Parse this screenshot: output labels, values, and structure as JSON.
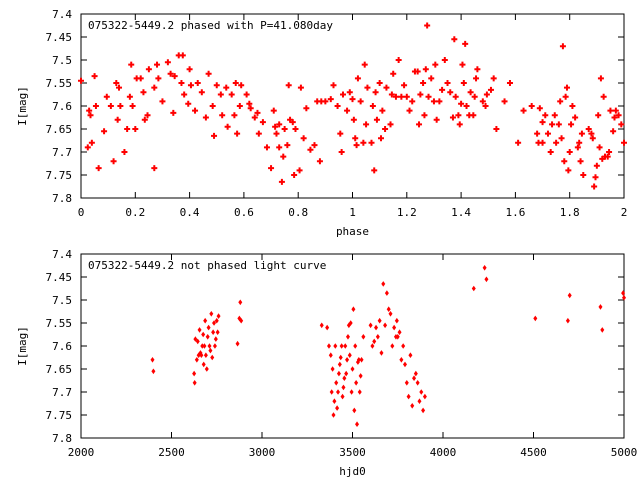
{
  "chart_data": [
    {
      "type": "scatter",
      "title": "075322-5449.2 phased with P=41.080day",
      "xlabel": "phase",
      "ylabel": "I[mag]",
      "xlim": [
        0,
        2
      ],
      "ylim": [
        7.8,
        7.4
      ],
      "y_inverted": true,
      "grid": false,
      "xticks": [
        0,
        0.2,
        0.4,
        0.6,
        0.8,
        1,
        1.2,
        1.4,
        1.6,
        1.8,
        2
      ],
      "xtick_labels": [
        "0",
        "0.2",
        "0.4",
        "0.6",
        "0.8",
        "1",
        "1.2",
        "1.4",
        "1.6",
        "1.8",
        "2"
      ],
      "yticks": [
        7.4,
        7.45,
        7.5,
        7.55,
        7.6,
        7.65,
        7.7,
        7.75,
        7.8
      ],
      "ytick_labels": [
        "7.4",
        "7.45",
        "7.5",
        "7.55",
        "7.6",
        "7.65",
        "7.7",
        "7.75",
        "7.8"
      ],
      "marker_color": "#ff0000",
      "points": [
        [
          0.0,
          7.545
        ],
        [
          0.025,
          7.69
        ],
        [
          0.03,
          7.61
        ],
        [
          0.035,
          7.62
        ],
        [
          0.04,
          7.68
        ],
        [
          0.05,
          7.535
        ],
        [
          0.055,
          7.6
        ],
        [
          0.065,
          7.735
        ],
        [
          0.085,
          7.655
        ],
        [
          0.095,
          7.58
        ],
        [
          0.11,
          7.6
        ],
        [
          0.12,
          7.72
        ],
        [
          0.13,
          7.55
        ],
        [
          0.135,
          7.63
        ],
        [
          0.14,
          7.56
        ],
        [
          0.145,
          7.6
        ],
        [
          0.16,
          7.7
        ],
        [
          0.17,
          7.65
        ],
        [
          0.18,
          7.58
        ],
        [
          0.185,
          7.51
        ],
        [
          0.19,
          7.6
        ],
        [
          0.2,
          7.65
        ],
        [
          0.205,
          7.54
        ],
        [
          0.22,
          7.54
        ],
        [
          0.23,
          7.57
        ],
        [
          0.235,
          7.63
        ],
        [
          0.245,
          7.62
        ],
        [
          0.25,
          7.52
        ],
        [
          0.27,
          7.56
        ],
        [
          0.27,
          7.735
        ],
        [
          0.28,
          7.51
        ],
        [
          0.285,
          7.54
        ],
        [
          0.3,
          7.59
        ],
        [
          0.32,
          7.505
        ],
        [
          0.33,
          7.53
        ],
        [
          0.34,
          7.615
        ],
        [
          0.345,
          7.535
        ],
        [
          0.36,
          7.49
        ],
        [
          0.37,
          7.55
        ],
        [
          0.375,
          7.49
        ],
        [
          0.38,
          7.575
        ],
        [
          0.395,
          7.595
        ],
        [
          0.4,
          7.52
        ],
        [
          0.405,
          7.555
        ],
        [
          0.42,
          7.61
        ],
        [
          0.43,
          7.55
        ],
        [
          0.445,
          7.57
        ],
        [
          0.46,
          7.625
        ],
        [
          0.47,
          7.53
        ],
        [
          0.485,
          7.6
        ],
        [
          0.49,
          7.665
        ],
        [
          0.5,
          7.555
        ],
        [
          0.515,
          7.575
        ],
        [
          0.52,
          7.62
        ],
        [
          0.535,
          7.56
        ],
        [
          0.54,
          7.645
        ],
        [
          0.555,
          7.575
        ],
        [
          0.565,
          7.62
        ],
        [
          0.57,
          7.55
        ],
        [
          0.575,
          7.66
        ],
        [
          0.585,
          7.6
        ],
        [
          0.59,
          7.555
        ],
        [
          0.61,
          7.575
        ],
        [
          0.62,
          7.595
        ],
        [
          0.625,
          7.605
        ],
        [
          0.64,
          7.625
        ],
        [
          0.65,
          7.615
        ],
        [
          0.655,
          7.66
        ],
        [
          0.67,
          7.635
        ],
        [
          0.685,
          7.69
        ],
        [
          0.7,
          7.735
        ],
        [
          0.71,
          7.61
        ],
        [
          0.715,
          7.645
        ],
        [
          0.72,
          7.66
        ],
        [
          0.73,
          7.64
        ],
        [
          0.73,
          7.69
        ],
        [
          0.74,
          7.765
        ],
        [
          0.745,
          7.71
        ],
        [
          0.75,
          7.65
        ],
        [
          0.76,
          7.685
        ],
        [
          0.765,
          7.555
        ],
        [
          0.77,
          7.63
        ],
        [
          0.78,
          7.635
        ],
        [
          0.785,
          7.75
        ],
        [
          0.79,
          7.65
        ],
        [
          0.805,
          7.74
        ],
        [
          0.81,
          7.56
        ],
        [
          0.82,
          7.67
        ],
        [
          0.83,
          7.605
        ],
        [
          0.845,
          7.695
        ],
        [
          0.86,
          7.685
        ],
        [
          0.87,
          7.59
        ],
        [
          0.88,
          7.72
        ],
        [
          0.885,
          7.59
        ],
        [
          0.9,
          7.59
        ],
        [
          0.92,
          7.585
        ],
        [
          0.93,
          7.555
        ],
        [
          0.945,
          7.6
        ],
        [
          0.955,
          7.66
        ],
        [
          0.96,
          7.7
        ],
        [
          0.965,
          7.575
        ],
        [
          0.98,
          7.61
        ],
        [
          0.99,
          7.57
        ],
        [
          1.0,
          7.585
        ],
        [
          1.005,
          7.63
        ],
        [
          1.01,
          7.67
        ],
        [
          1.015,
          7.685
        ],
        [
          1.02,
          7.54
        ],
        [
          1.03,
          7.59
        ],
        [
          1.04,
          7.68
        ],
        [
          1.045,
          7.51
        ],
        [
          1.05,
          7.64
        ],
        [
          1.055,
          7.56
        ],
        [
          1.07,
          7.68
        ],
        [
          1.075,
          7.6
        ],
        [
          1.08,
          7.74
        ],
        [
          1.085,
          7.57
        ],
        [
          1.09,
          7.63
        ],
        [
          1.1,
          7.55
        ],
        [
          1.105,
          7.67
        ],
        [
          1.11,
          7.61
        ],
        [
          1.12,
          7.65
        ],
        [
          1.125,
          7.56
        ],
        [
          1.14,
          7.64
        ],
        [
          1.145,
          7.575
        ],
        [
          1.15,
          7.53
        ],
        [
          1.16,
          7.58
        ],
        [
          1.17,
          7.5
        ],
        [
          1.18,
          7.58
        ],
        [
          1.19,
          7.555
        ],
        [
          1.2,
          7.58
        ],
        [
          1.21,
          7.61
        ],
        [
          1.22,
          7.59
        ],
        [
          1.23,
          7.525
        ],
        [
          1.24,
          7.525
        ],
        [
          1.245,
          7.64
        ],
        [
          1.25,
          7.575
        ],
        [
          1.26,
          7.55
        ],
        [
          1.265,
          7.62
        ],
        [
          1.27,
          7.52
        ],
        [
          1.275,
          7.425
        ],
        [
          1.28,
          7.58
        ],
        [
          1.29,
          7.54
        ],
        [
          1.3,
          7.59
        ],
        [
          1.305,
          7.51
        ],
        [
          1.31,
          7.63
        ],
        [
          1.32,
          7.59
        ],
        [
          1.33,
          7.565
        ],
        [
          1.34,
          7.5
        ],
        [
          1.35,
          7.55
        ],
        [
          1.36,
          7.57
        ],
        [
          1.37,
          7.625
        ],
        [
          1.375,
          7.455
        ],
        [
          1.38,
          7.58
        ],
        [
          1.39,
          7.62
        ],
        [
          1.395,
          7.64
        ],
        [
          1.4,
          7.595
        ],
        [
          1.405,
          7.51
        ],
        [
          1.41,
          7.55
        ],
        [
          1.415,
          7.465
        ],
        [
          1.42,
          7.6
        ],
        [
          1.43,
          7.62
        ],
        [
          1.435,
          7.57
        ],
        [
          1.445,
          7.62
        ],
        [
          1.45,
          7.58
        ],
        [
          1.455,
          7.54
        ],
        [
          1.46,
          7.52
        ],
        [
          1.48,
          7.59
        ],
        [
          1.49,
          7.6
        ],
        [
          1.495,
          7.575
        ],
        [
          1.51,
          7.565
        ],
        [
          1.52,
          7.54
        ],
        [
          1.53,
          7.65
        ],
        [
          1.56,
          7.59
        ],
        [
          1.58,
          7.55
        ],
        [
          1.61,
          7.68
        ],
        [
          1.63,
          7.61
        ],
        [
          1.66,
          7.6
        ],
        [
          1.68,
          7.66
        ],
        [
          1.685,
          7.68
        ],
        [
          1.69,
          7.605
        ],
        [
          1.7,
          7.635
        ],
        [
          1.7,
          7.68
        ],
        [
          1.71,
          7.62
        ],
        [
          1.72,
          7.66
        ],
        [
          1.73,
          7.7
        ],
        [
          1.735,
          7.64
        ],
        [
          1.745,
          7.62
        ],
        [
          1.75,
          7.68
        ],
        [
          1.76,
          7.64
        ],
        [
          1.765,
          7.59
        ],
        [
          1.77,
          7.67
        ],
        [
          1.775,
          7.47
        ],
        [
          1.78,
          7.72
        ],
        [
          1.785,
          7.58
        ],
        [
          1.79,
          7.56
        ],
        [
          1.795,
          7.74
        ],
        [
          1.8,
          7.7
        ],
        [
          1.805,
          7.64
        ],
        [
          1.81,
          7.6
        ],
        [
          1.82,
          7.625
        ],
        [
          1.83,
          7.69
        ],
        [
          1.835,
          7.68
        ],
        [
          1.84,
          7.72
        ],
        [
          1.845,
          7.66
        ],
        [
          1.85,
          7.75
        ],
        [
          1.87,
          7.65
        ],
        [
          1.88,
          7.66
        ],
        [
          1.885,
          7.67
        ],
        [
          1.89,
          7.775
        ],
        [
          1.895,
          7.755
        ],
        [
          1.9,
          7.73
        ],
        [
          1.905,
          7.62
        ],
        [
          1.91,
          7.69
        ],
        [
          1.915,
          7.54
        ],
        [
          1.92,
          7.715
        ],
        [
          1.925,
          7.58
        ],
        [
          1.93,
          7.71
        ],
        [
          1.94,
          7.71
        ],
        [
          1.945,
          7.7
        ],
        [
          1.95,
          7.61
        ],
        [
          1.96,
          7.655
        ],
        [
          1.965,
          7.625
        ],
        [
          1.97,
          7.61
        ],
        [
          1.98,
          7.62
        ],
        [
          1.99,
          7.64
        ],
        [
          2.0,
          7.68
        ]
      ]
    },
    {
      "type": "scatter",
      "title": "075322-5449.2 not phased light curve",
      "xlabel": "hjd0",
      "ylabel": "I[mag]",
      "xlim": [
        2000,
        5000
      ],
      "ylim": [
        7.8,
        7.4
      ],
      "y_inverted": true,
      "grid": false,
      "xticks": [
        2000,
        2500,
        3000,
        3500,
        4000,
        4500,
        5000
      ],
      "xtick_labels": [
        "2000",
        "2500",
        "3000",
        "3500",
        "4000",
        "4500",
        "5000"
      ],
      "yticks": [
        7.4,
        7.45,
        7.5,
        7.55,
        7.6,
        7.65,
        7.7,
        7.75,
        7.8
      ],
      "ytick_labels": [
        "7.4",
        "7.45",
        "7.5",
        "7.55",
        "7.6",
        "7.65",
        "7.7",
        "7.75",
        "7.8"
      ],
      "marker_color": "#ff0000",
      "points": [
        [
          2395,
          7.63
        ],
        [
          2400,
          7.655
        ],
        [
          2625,
          7.66
        ],
        [
          2628,
          7.68
        ],
        [
          2632,
          7.585
        ],
        [
          2640,
          7.63
        ],
        [
          2645,
          7.59
        ],
        [
          2650,
          7.62
        ],
        [
          2655,
          7.565
        ],
        [
          2660,
          7.615
        ],
        [
          2665,
          7.62
        ],
        [
          2670,
          7.6
        ],
        [
          2675,
          7.575
        ],
        [
          2678,
          7.64
        ],
        [
          2682,
          7.6
        ],
        [
          2686,
          7.545
        ],
        [
          2690,
          7.62
        ],
        [
          2695,
          7.65
        ],
        [
          2700,
          7.58
        ],
        [
          2705,
          7.56
        ],
        [
          2710,
          7.6
        ],
        [
          2715,
          7.61
        ],
        [
          2720,
          7.53
        ],
        [
          2725,
          7.625
        ],
        [
          2730,
          7.57
        ],
        [
          2735,
          7.55
        ],
        [
          2740,
          7.6
        ],
        [
          2745,
          7.585
        ],
        [
          2750,
          7.545
        ],
        [
          2755,
          7.57
        ],
        [
          2760,
          7.535
        ],
        [
          2865,
          7.595
        ],
        [
          2875,
          7.54
        ],
        [
          2880,
          7.505
        ],
        [
          2885,
          7.545
        ],
        [
          3330,
          7.555
        ],
        [
          3360,
          7.56
        ],
        [
          3370,
          7.6
        ],
        [
          3380,
          7.62
        ],
        [
          3385,
          7.7
        ],
        [
          3390,
          7.65
        ],
        [
          3395,
          7.75
        ],
        [
          3400,
          7.72
        ],
        [
          3405,
          7.6
        ],
        [
          3410,
          7.68
        ],
        [
          3415,
          7.735
        ],
        [
          3420,
          7.7
        ],
        [
          3425,
          7.66
        ],
        [
          3430,
          7.64
        ],
        [
          3435,
          7.625
        ],
        [
          3440,
          7.6
        ],
        [
          3445,
          7.71
        ],
        [
          3450,
          7.69
        ],
        [
          3455,
          7.67
        ],
        [
          3460,
          7.6
        ],
        [
          3465,
          7.66
        ],
        [
          3470,
          7.63
        ],
        [
          3475,
          7.58
        ],
        [
          3480,
          7.555
        ],
        [
          3485,
          7.62
        ],
        [
          3490,
          7.55
        ],
        [
          3495,
          7.7
        ],
        [
          3500,
          7.65
        ],
        [
          3505,
          7.52
        ],
        [
          3510,
          7.74
        ],
        [
          3515,
          7.6
        ],
        [
          3520,
          7.68
        ],
        [
          3525,
          7.77
        ],
        [
          3530,
          7.635
        ],
        [
          3535,
          7.63
        ],
        [
          3540,
          7.7
        ],
        [
          3545,
          7.665
        ],
        [
          3550,
          7.63
        ],
        [
          3560,
          7.58
        ],
        [
          3600,
          7.555
        ],
        [
          3610,
          7.6
        ],
        [
          3620,
          7.59
        ],
        [
          3630,
          7.56
        ],
        [
          3640,
          7.58
        ],
        [
          3650,
          7.545
        ],
        [
          3660,
          7.615
        ],
        [
          3670,
          7.465
        ],
        [
          3680,
          7.555
        ],
        [
          3690,
          7.485
        ],
        [
          3700,
          7.52
        ],
        [
          3710,
          7.53
        ],
        [
          3720,
          7.6
        ],
        [
          3730,
          7.56
        ],
        [
          3740,
          7.58
        ],
        [
          3745,
          7.545
        ],
        [
          3750,
          7.58
        ],
        [
          3760,
          7.57
        ],
        [
          3770,
          7.63
        ],
        [
          3780,
          7.6
        ],
        [
          3790,
          7.64
        ],
        [
          3800,
          7.68
        ],
        [
          3810,
          7.71
        ],
        [
          3820,
          7.62
        ],
        [
          3830,
          7.73
        ],
        [
          3840,
          7.67
        ],
        [
          3850,
          7.66
        ],
        [
          3860,
          7.68
        ],
        [
          3870,
          7.72
        ],
        [
          3880,
          7.7
        ],
        [
          3890,
          7.74
        ],
        [
          3900,
          7.71
        ],
        [
          4170,
          7.475
        ],
        [
          4230,
          7.43
        ],
        [
          4240,
          7.455
        ],
        [
          4510,
          7.54
        ],
        [
          4690,
          7.545
        ],
        [
          4700,
          7.49
        ],
        [
          4870,
          7.515
        ],
        [
          4880,
          7.565
        ],
        [
          4995,
          7.485
        ],
        [
          5000,
          7.495
        ]
      ]
    }
  ]
}
